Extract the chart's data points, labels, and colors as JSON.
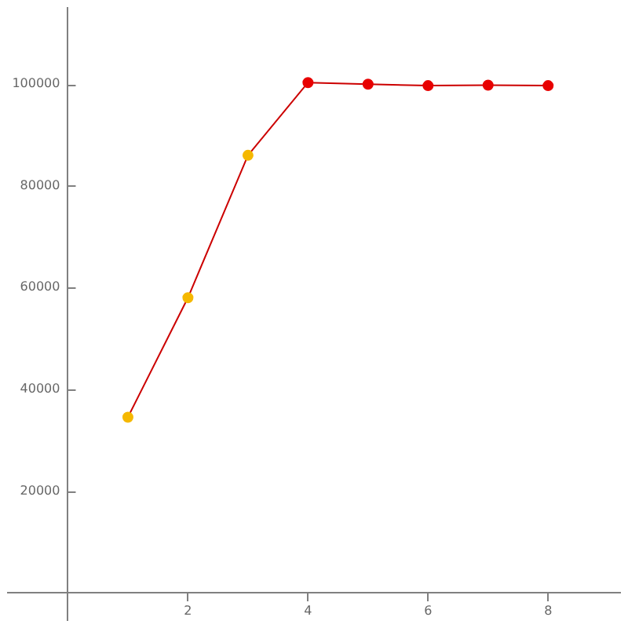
{
  "chart_data": {
    "type": "line",
    "x": [
      1,
      2,
      3,
      4,
      5,
      6,
      7,
      8
    ],
    "series": [
      {
        "color": "#cc0000",
        "colors": [
          "#f5b800",
          "#f5b800",
          "#f5b800",
          "#e80000",
          "#e80000",
          "#e80000",
          "#e80000",
          "#e80000"
        ],
        "values": [
          34500,
          58000,
          86000,
          100300,
          100000,
          99700,
          99800,
          99700
        ]
      }
    ],
    "xlim": [
      -1,
      9.2
    ],
    "ylim": [
      -5400,
      115000
    ],
    "xticks": [
      2,
      4,
      6,
      8
    ],
    "yticks": [
      20000,
      40000,
      60000,
      80000,
      100000
    ],
    "grid": false,
    "legend": false,
    "marker": "circle",
    "line_style": "solid"
  }
}
